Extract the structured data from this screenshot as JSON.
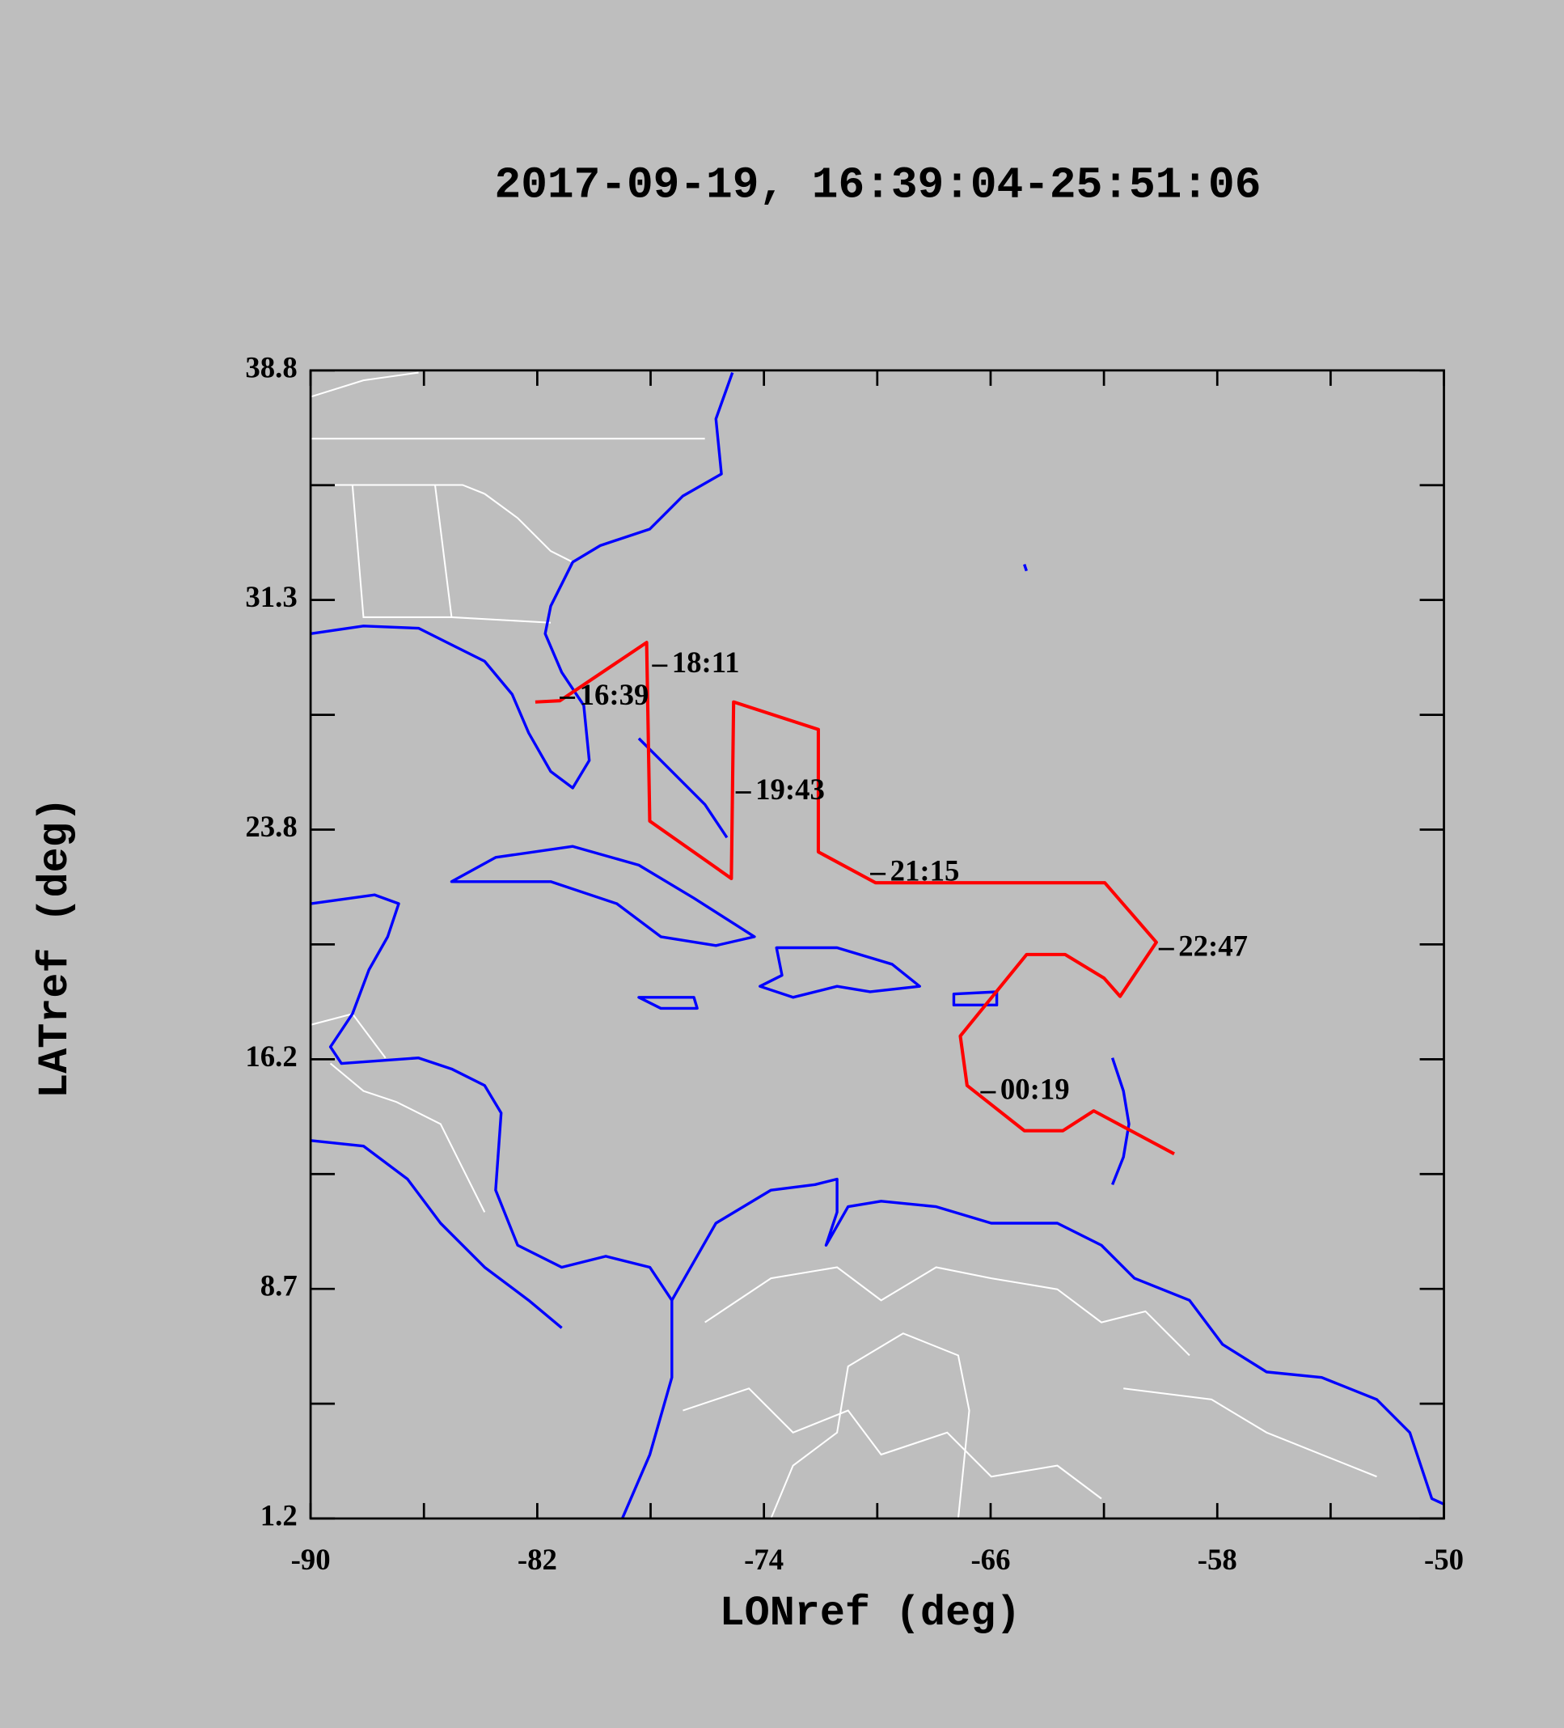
{
  "chart_data": {
    "type": "line",
    "title": "2017-09-19, 16:39:04-25:51:06",
    "x_label": "LONref (deg)",
    "y_label": "LATref (deg)",
    "xlim": [
      -90,
      -50
    ],
    "xticks": [
      -90,
      -82,
      -74,
      -66,
      -58,
      -50
    ],
    "ylim": [
      1.2,
      38.8
    ],
    "yticks": [
      1.2,
      {
        "value": 8.72,
        "label": "8.7"
      },
      {
        "value": 16.24,
        "label": "16.2"
      },
      {
        "value": 23.76,
        "label": "23.8"
      },
      {
        "value": 31.28,
        "label": "31.3"
      },
      38.8
    ],
    "color": "#ff0000",
    "x": [
      -82.07,
      -81.2,
      -78.14,
      -78.03,
      -75.15,
      -75.07,
      -72.08,
      -72.08,
      -70.06,
      -61.97,
      -60.15,
      -61.43,
      -62.0,
      -63.37,
      -64.73,
      -67.07,
      -66.83,
      -64.81,
      -63.45,
      -62.36,
      -59.52
    ],
    "values": [
      27.94,
      27.98,
      29.89,
      24.04,
      22.16,
      27.94,
      27.04,
      23.03,
      22.02,
      22.02,
      20.07,
      18.3,
      18.9,
      19.67,
      19.67,
      17.0,
      15.38,
      13.9,
      13.9,
      14.55,
      13.14
    ],
    "annotations": [
      {
        "text": "16:39",
        "x": -81.21,
        "y": 28.08
      },
      {
        "text": "18:11",
        "x": -77.95,
        "y": 29.13
      },
      {
        "text": "19:43",
        "x": -75.0,
        "y": 24.98
      },
      {
        "text": "21:15",
        "x": -70.25,
        "y": 22.31
      },
      {
        "text": "22:47",
        "x": -60.07,
        "y": 19.85
      },
      {
        "text": "00:19",
        "x": -66.36,
        "y": 15.16
      }
    ]
  }
}
